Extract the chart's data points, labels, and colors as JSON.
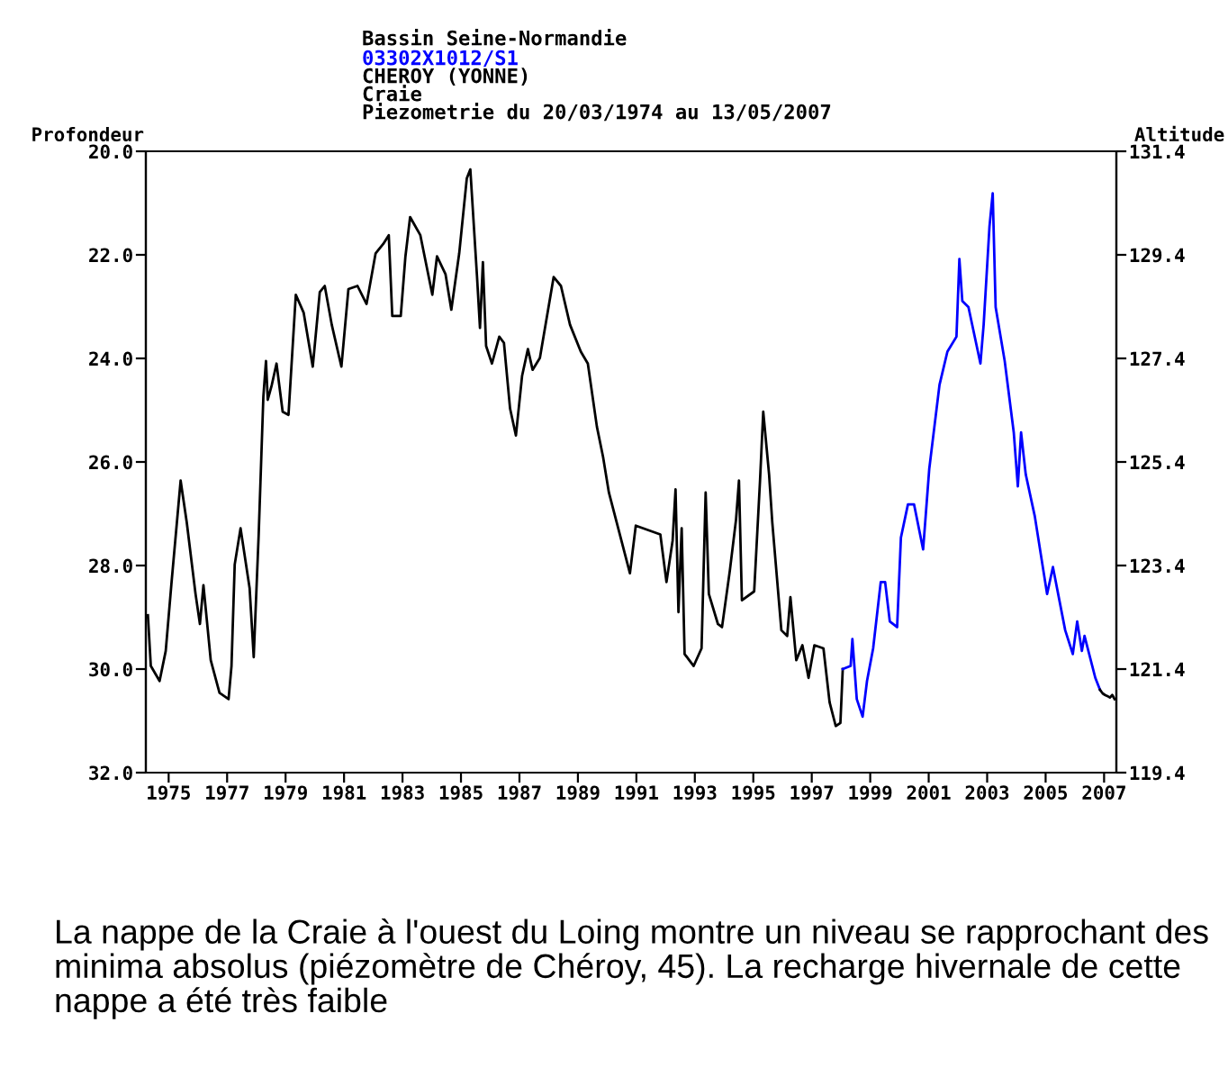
{
  "chart_data": {
    "type": "line",
    "title": "Bassin Seine-Normandie",
    "subtitle": "03302X1012/S1",
    "annotations": [
      "CHEROY (YONNE)",
      "Craie",
      "Piezometrie du 20/03/1974 au 13/05/2007",
      "La nappe de la Craie à l'ouest du Loing montre un niveau se rapprochant des minima absolus (piézomètre de Chéroy, 45). La recharge hivernale de cette nappe a été très faible"
    ],
    "ylabel": "Profondeur",
    "y2label": "Altitude",
    "xlim": [
      1974.22,
      2007.42
    ],
    "xticks": [
      1975,
      1977,
      1979,
      1981,
      1983,
      1985,
      1987,
      1989,
      1991,
      1993,
      1995,
      1997,
      1999,
      2001,
      2003,
      2005,
      2007
    ],
    "ylim": [
      32,
      20
    ],
    "yticks": [
      {
        "value": 20,
        "label": "20.0"
      },
      {
        "value": 22,
        "label": "22.0"
      },
      {
        "value": 24,
        "label": "24.0"
      },
      {
        "value": 26,
        "label": "26.0"
      },
      {
        "value": 28,
        "label": "28.0"
      },
      {
        "value": 30,
        "label": "30.0"
      },
      {
        "value": 32,
        "label": "32.0"
      }
    ],
    "y2lim": [
      119.4,
      131.4
    ],
    "y2ticks": [
      119.4,
      121.4,
      123.4,
      125.4,
      127.4,
      129.4,
      131.4
    ],
    "grid": false,
    "legend": false,
    "marker": "none",
    "line_style": "solid",
    "series": [
      {
        "color": "#000000",
        "x": [
          1974.29,
          1974.39,
          1974.69,
          1974.9,
          1975.1,
          1975.41,
          1975.62,
          1975.92,
          1976.07,
          1976.19,
          1976.44,
          1976.74,
          1977.05,
          1977.15,
          1977.26,
          1977.46,
          1977.77,
          1977.91,
          1978.08,
          1978.24,
          1978.33,
          1978.39,
          1978.53,
          1978.69,
          1978.9,
          1979.1,
          1979.35,
          1979.62,
          1979.93,
          1980.17,
          1980.34,
          1980.58,
          1980.91,
          1981.15,
          1981.46,
          1981.77,
          1982.08,
          1982.34,
          1982.53,
          1982.65,
          1982.94,
          1983.1,
          1983.26,
          1983.61,
          1984.02,
          1984.18,
          1984.47,
          1984.67,
          1984.94,
          1985.2,
          1985.32,
          1985.55,
          1985.65,
          1985.75,
          1985.86,
          1986.06,
          1986.31,
          1986.47,
          1986.68,
          1986.88,
          1987.09,
          1987.29,
          1987.45,
          1987.7,
          1988.17,
          1988.42,
          1988.73,
          1989.1,
          1989.34,
          1989.65,
          1989.86,
          1990.06,
          1990.78,
          1990.98,
          1991.82,
          1992.03,
          1992.24,
          1992.34,
          1992.44,
          1992.55,
          1992.65,
          1992.96,
          1993.23,
          1993.37,
          1993.48,
          1993.79,
          1993.93,
          1994.2,
          1994.41,
          1994.51,
          1994.61,
          1995.03,
          1995.23,
          1995.34,
          1995.54,
          1995.65,
          1995.96,
          1996.16,
          1996.27,
          1996.47,
          1996.68,
          1996.89,
          1997.09,
          1997.4,
          1997.61,
          1997.82,
          1997.98,
          1998.06
        ],
        "values": [
          28.96,
          29.94,
          30.23,
          29.65,
          28.32,
          26.36,
          27.17,
          28.55,
          29.13,
          28.38,
          29.83,
          30.46,
          30.58,
          29.94,
          27.98,
          27.28,
          28.44,
          29.77,
          27.4,
          24.74,
          24.05,
          24.8,
          24.51,
          24.1,
          25.03,
          25.09,
          22.77,
          23.12,
          24.16,
          22.72,
          22.6,
          23.35,
          24.16,
          22.66,
          22.6,
          22.95,
          21.97,
          21.79,
          21.62,
          23.18,
          23.18,
          22.03,
          21.27,
          21.62,
          22.77,
          22.03,
          22.37,
          23.06,
          21.97,
          20.52,
          20.35,
          22.43,
          23.41,
          22.14,
          23.76,
          24.1,
          23.58,
          23.7,
          24.97,
          25.49,
          24.34,
          23.82,
          24.22,
          23.99,
          22.43,
          22.6,
          23.35,
          23.87,
          24.1,
          25.32,
          25.9,
          26.59,
          28.15,
          27.23,
          27.4,
          28.32,
          27.52,
          26.53,
          28.9,
          27.28,
          29.71,
          29.94,
          29.6,
          26.59,
          28.55,
          29.13,
          29.19,
          28.09,
          27.11,
          26.36,
          28.67,
          28.5,
          26.36,
          25.03,
          26.24,
          27.17,
          29.25,
          29.36,
          28.61,
          29.83,
          29.54,
          30.17,
          29.54,
          29.6,
          30.64,
          31.1,
          31.04,
          30.0
        ]
      },
      {
        "color": "#0000ff",
        "x": [
          1998.06,
          1998.33,
          1998.39,
          1998.54,
          1998.74,
          1998.89,
          1999.1,
          1999.36,
          1999.51,
          1999.67,
          1999.92,
          2000.05,
          2000.29,
          2000.5,
          2000.81,
          2001.02,
          2001.37,
          2001.64,
          2001.95,
          2002.05,
          2002.15,
          2002.36,
          2002.77,
          2002.88,
          2003.08,
          2003.19,
          2003.29,
          2003.6,
          2003.91,
          2004.05,
          2004.16,
          2004.32,
          2004.63,
          2005.05,
          2005.25,
          2005.67,
          2005.93,
          2006.08,
          2006.24,
          2006.33,
          2006.7,
          2006.86
        ],
        "values": [
          30.0,
          29.94,
          29.42,
          30.58,
          30.92,
          30.23,
          29.6,
          28.32,
          28.32,
          29.08,
          29.19,
          27.46,
          26.82,
          26.82,
          27.69,
          26.13,
          24.51,
          23.87,
          23.58,
          22.08,
          22.89,
          23.01,
          24.1,
          23.35,
          21.45,
          20.81,
          23.01,
          24.05,
          25.43,
          26.47,
          25.43,
          26.24,
          27.05,
          28.55,
          28.03,
          29.25,
          29.71,
          29.08,
          29.65,
          29.36,
          30.17,
          30.4
        ]
      },
      {
        "color": "#000000",
        "x": [
          2006.86,
          2006.95,
          2007.03,
          2007.11,
          2007.2,
          2007.28,
          2007.36
        ],
        "values": [
          30.4,
          30.47,
          30.5,
          30.52,
          30.55,
          30.5,
          30.58
        ]
      }
    ]
  }
}
